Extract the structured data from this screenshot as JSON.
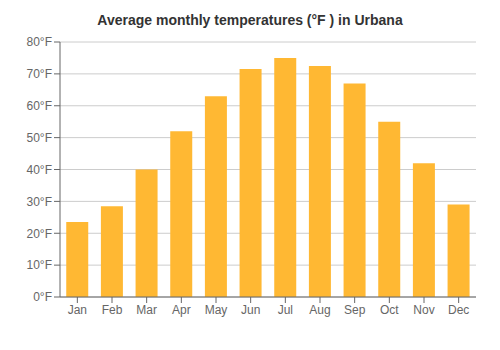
{
  "chart_data": {
    "type": "bar",
    "title": "Average monthly temperatures (°F ) in Urbana",
    "categories": [
      "Jan",
      "Feb",
      "Mar",
      "Apr",
      "May",
      "Jun",
      "Jul",
      "Aug",
      "Sep",
      "Oct",
      "Nov",
      "Dec"
    ],
    "values": [
      23.5,
      28.5,
      40.0,
      52.0,
      63.0,
      71.5,
      75.0,
      72.5,
      67.0,
      55.0,
      42.0,
      29.0
    ],
    "color": "#FFB833",
    "ylim": [
      0,
      80
    ],
    "yticks": [
      {
        "value": 0,
        "label": "0°F"
      },
      {
        "value": 10,
        "label": "10°F"
      },
      {
        "value": 20,
        "label": "20°F"
      },
      {
        "value": 30,
        "label": "30°F"
      },
      {
        "value": 40,
        "label": "40°F"
      },
      {
        "value": 50,
        "label": "50°F"
      },
      {
        "value": 60,
        "label": "60°F"
      },
      {
        "value": 70,
        "label": "70°F"
      },
      {
        "value": 80,
        "label": "80°F"
      }
    ],
    "grid": true
  }
}
